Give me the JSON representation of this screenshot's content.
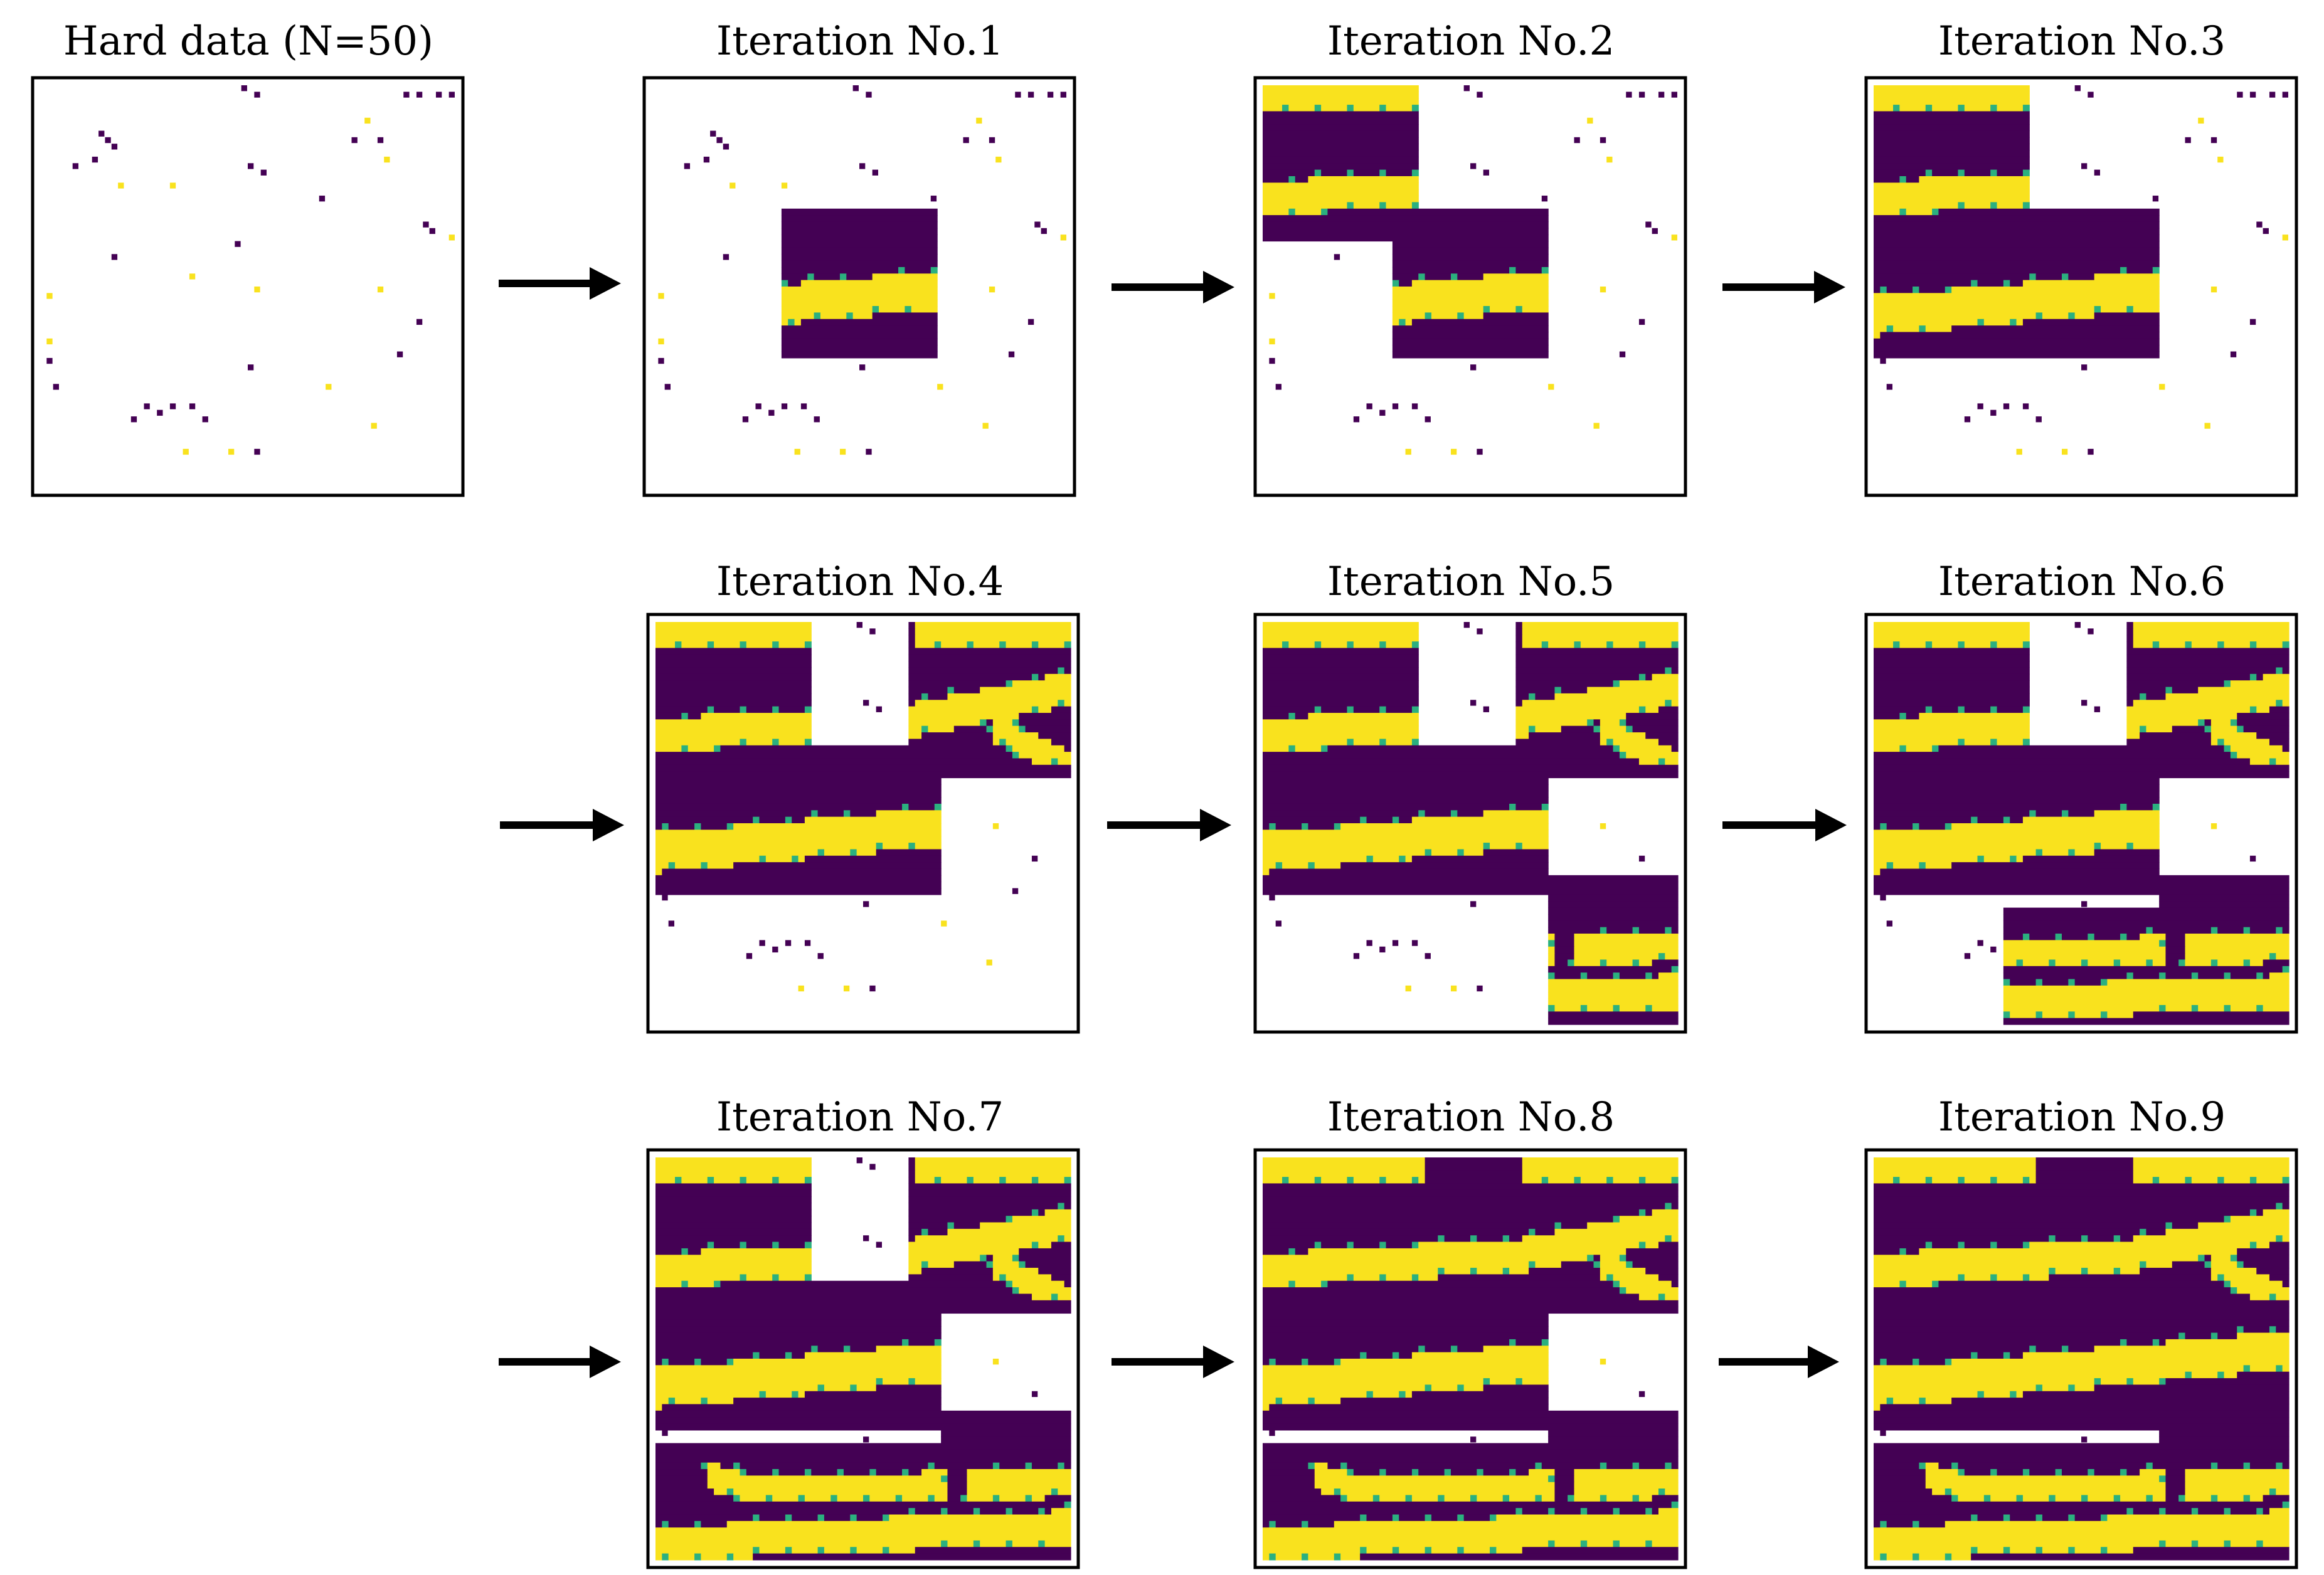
{
  "figure": {
    "panels": [
      {
        "id": "hard-data",
        "title": "Hard data (N=50)",
        "filled_blocks": []
      },
      {
        "id": "iter-1",
        "title": "Iteration No.1",
        "filled_blocks": [
          "center"
        ]
      },
      {
        "id": "iter-2",
        "title": "Iteration No.2",
        "filled_blocks": [
          "top-left",
          "center"
        ]
      },
      {
        "id": "iter-3",
        "title": "Iteration No.3",
        "filled_blocks": [
          "top-left",
          "center",
          "left-middle"
        ]
      },
      {
        "id": "iter-4",
        "title": "Iteration No.4",
        "filled_blocks": [
          "top-left",
          "center",
          "left-middle",
          "top-right"
        ]
      },
      {
        "id": "iter-5",
        "title": "Iteration No.5",
        "filled_blocks": [
          "top-left",
          "center",
          "left-middle",
          "top-right",
          "bottom-right"
        ]
      },
      {
        "id": "iter-6",
        "title": "Iteration No.6",
        "filled_blocks": [
          "top-left",
          "center",
          "left-middle",
          "top-right",
          "bottom-right",
          "bottom-center"
        ]
      },
      {
        "id": "iter-7",
        "title": "Iteration No.7",
        "filled_blocks": [
          "top-left",
          "center",
          "left-middle",
          "top-right",
          "bottom-right",
          "bottom-center",
          "bottom-left"
        ]
      },
      {
        "id": "iter-8",
        "title": "Iteration No.8",
        "filled_blocks": [
          "top-left",
          "center",
          "left-middle",
          "top-right",
          "bottom-right",
          "bottom-center",
          "bottom-left",
          "top-middle"
        ]
      },
      {
        "id": "iter-9",
        "title": "Iteration No.9",
        "filled_blocks": [
          "top-left",
          "center",
          "left-middle",
          "top-right",
          "bottom-right",
          "bottom-center",
          "bottom-left",
          "top-middle",
          "right-middle"
        ]
      }
    ],
    "colors": {
      "channel": "#f9e21e",
      "background": "#440154",
      "transition": "#2bb07f",
      "unsimulated": "#ffffff",
      "frame": "#000000",
      "arrow": "#000000"
    }
  }
}
